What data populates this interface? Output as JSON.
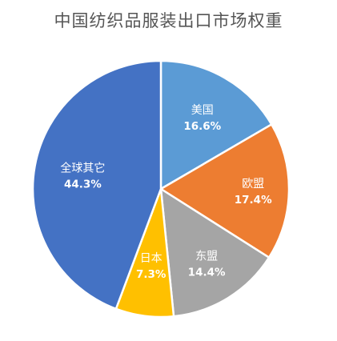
{
  "chart_data": {
    "type": "pie",
    "title": "中国纺织品服装出口市场权重",
    "categories": [
      "美国",
      "欧盟",
      "东盟",
      "日本",
      "全球其它"
    ],
    "values": [
      16.6,
      17.4,
      14.4,
      7.3,
      44.3
    ],
    "value_labels": [
      "16.6%",
      "17.4%",
      "14.4%",
      "7.3%",
      "44.3%"
    ],
    "colors": [
      "#5B9BD5",
      "#ED7D31",
      "#A5A5A5",
      "#FFC000",
      "#4472C4"
    ],
    "start_angle_deg": 0,
    "direction": "clockwise",
    "legend": "none"
  }
}
